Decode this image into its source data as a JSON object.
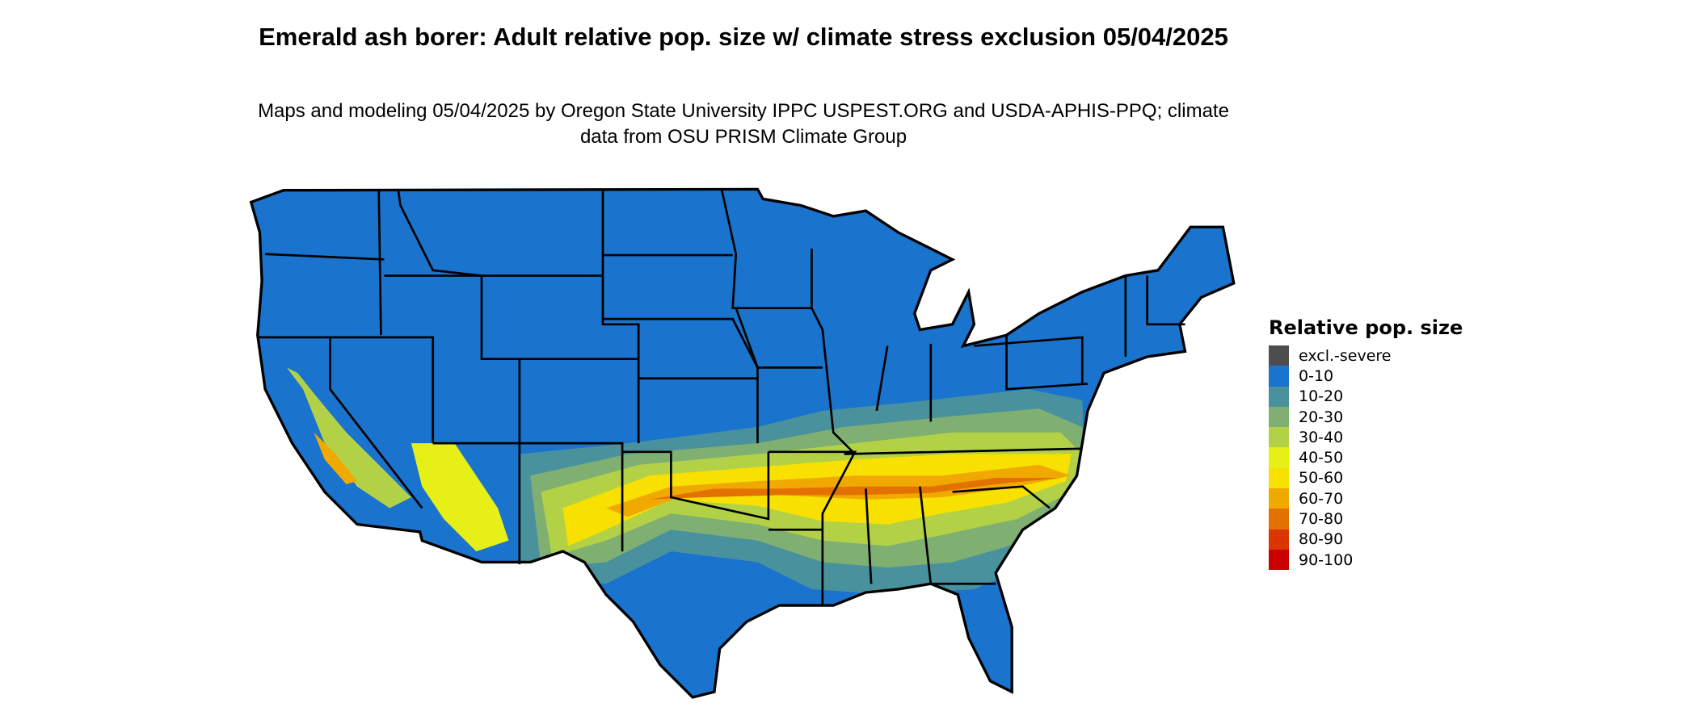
{
  "title": "Emerald ash borer: Adult relative pop. size w/ climate stress exclusion 05/04/2025",
  "subtitle": "Maps and modeling 05/04/2025 by Oregon State University IPPC USPEST.ORG and USDA-APHIS-PPQ; climate data from OSU PRISM Climate Group",
  "legend": {
    "title": "Relative pop. size",
    "items": [
      {
        "label": "excl.-severe",
        "color": "#4d4d4d"
      },
      {
        "label": "0-10",
        "color": "#1a73cc"
      },
      {
        "label": "10-20",
        "color": "#4a919e"
      },
      {
        "label": "20-30",
        "color": "#7fb071"
      },
      {
        "label": "30-40",
        "color": "#b3d147"
      },
      {
        "label": "40-50",
        "color": "#e6f016"
      },
      {
        "label": "50-60",
        "color": "#f8e100"
      },
      {
        "label": "60-70",
        "color": "#f0a900"
      },
      {
        "label": "70-80",
        "color": "#e37100"
      },
      {
        "label": "80-90",
        "color": "#da3600"
      },
      {
        "label": "90-100",
        "color": "#cc0000"
      }
    ]
  },
  "map": {
    "region": "contiguous United States",
    "base_class": "0-10",
    "high_risk_region": "southern band from California to North Carolina, peak 50-80 in Tennessee/Kentucky/North Carolina and Oklahoma/Texas"
  }
}
